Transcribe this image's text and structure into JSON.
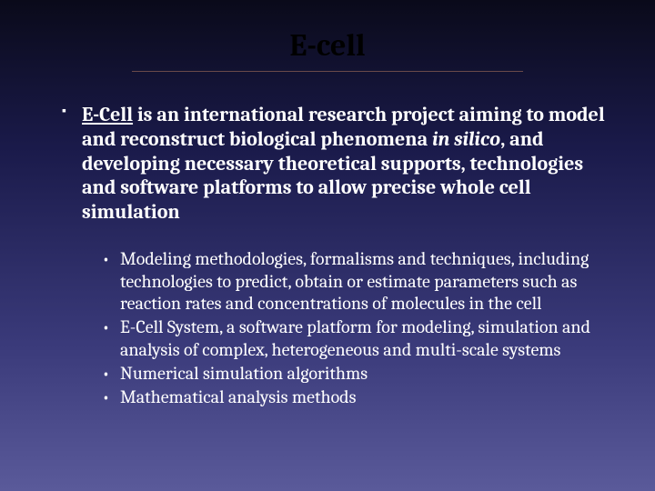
{
  "slide": {
    "title": "E-cell",
    "title_color": "#000000",
    "title_fontsize": 34,
    "underline_color": "#6a4a4a",
    "body_fontsize": 22,
    "sub_fontsize": 20,
    "text_color": "#ffffff",
    "background_gradient": [
      "#0a0a1a",
      "#1a1a4a",
      "#3a3a7a",
      "#5a5a9a"
    ],
    "font_family": "Cambria, Georgia, serif",
    "main_bullet": {
      "link_text": "E-Cell",
      "text_after_link": " is an international research project aiming to model and reconstruct biological phenomena ",
      "italic_text": "in silico",
      "text_after_italic": ", and developing necessary theoretical supports, technologies and software platforms to allow precise whole cell simulation"
    },
    "sub_bullets": [
      "Modeling methodologies, formalisms and techniques, including technologies to predict, obtain or estimate parameters such as reaction rates and concentrations of molecules in the cell",
      "E-Cell System, a software platform for modeling, simulation and analysis of complex, heterogeneous and multi-scale systems",
      "Numerical simulation algorithms",
      "Mathematical analysis methods"
    ]
  }
}
